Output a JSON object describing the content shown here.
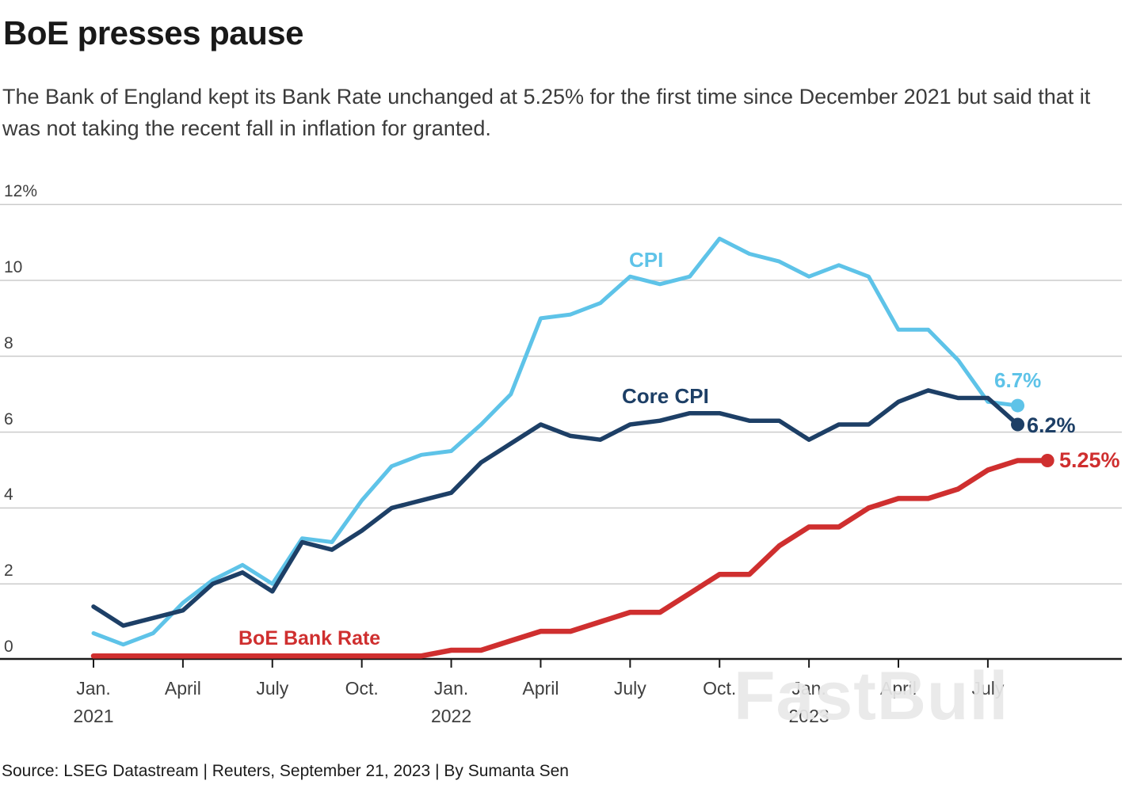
{
  "header": {
    "title": "BoE presses pause",
    "subtitle": "The Bank of England kept its Bank Rate unchanged at 5.25% for the first time since December 2021 but said that it was not taking the recent fall in inflation for granted."
  },
  "palette": {
    "cpi": "#5ec3e8",
    "core_cpi": "#1d3f66",
    "bank_rate": "#cf2f2f",
    "grid": "#cbcbcb",
    "axis": "#1a1a1a",
    "tick_text": "#3f3f3f",
    "watermark_gray": "#e9e9e9"
  },
  "series_labels": {
    "cpi": "CPI",
    "core_cpi": "Core CPI",
    "bank_rate": "BoE Bank Rate"
  },
  "end_labels": {
    "cpi": "6.7%",
    "core_cpi": "6.2%",
    "bank_rate": "5.25%"
  },
  "watermark": {
    "text": "FastBull"
  },
  "footer": {
    "source": "Source: LSEG Datastream | Reuters, September 21, 2023 | By Sumanta Sen"
  },
  "chart_data": {
    "type": "line",
    "title": "BoE presses pause",
    "x_unit": "month",
    "x_start": "2021-01",
    "x_end": "2023-09",
    "ylim": [
      0,
      12
    ],
    "grid": "horizontal",
    "legend_position": "inline-labels",
    "y_ticks": [
      {
        "value": 0,
        "label": "0"
      },
      {
        "value": 2,
        "label": "2"
      },
      {
        "value": 4,
        "label": "4"
      },
      {
        "value": 6,
        "label": "6"
      },
      {
        "value": 8,
        "label": "8"
      },
      {
        "value": 10,
        "label": "10"
      },
      {
        "value": 12,
        "label": "12%"
      }
    ],
    "x_ticks": [
      {
        "month": "Jan.",
        "year": "2021",
        "index": 0
      },
      {
        "month": "April",
        "year": "",
        "index": 3
      },
      {
        "month": "July",
        "year": "",
        "index": 6
      },
      {
        "month": "Oct.",
        "year": "",
        "index": 9
      },
      {
        "month": "Jan.",
        "year": "2022",
        "index": 12
      },
      {
        "month": "April",
        "year": "",
        "index": 15
      },
      {
        "month": "July",
        "year": "",
        "index": 18
      },
      {
        "month": "Oct.",
        "year": "",
        "index": 21
      },
      {
        "month": "Jan.",
        "year": "2023",
        "index": 24
      },
      {
        "month": "April",
        "year": "",
        "index": 27
      },
      {
        "month": "July",
        "year": "",
        "index": 30
      }
    ],
    "series": [
      {
        "name": "CPI",
        "color_key": "cpi",
        "stroke_width": 5,
        "end_label": "6.7%",
        "values": [
          0.7,
          0.4,
          0.7,
          1.5,
          2.1,
          2.5,
          2.0,
          3.2,
          3.1,
          4.2,
          5.1,
          5.4,
          5.5,
          6.2,
          7.0,
          9.0,
          9.1,
          9.4,
          10.1,
          9.9,
          10.1,
          11.1,
          10.7,
          10.5,
          10.1,
          10.4,
          10.1,
          8.7,
          8.7,
          7.9,
          6.8,
          6.7
        ]
      },
      {
        "name": "Core CPI",
        "color_key": "core_cpi",
        "stroke_width": 5.5,
        "end_label": "6.2%",
        "values": [
          1.4,
          0.9,
          1.1,
          1.3,
          2.0,
          2.3,
          1.8,
          3.1,
          2.9,
          3.4,
          4.0,
          4.2,
          4.4,
          5.2,
          5.7,
          6.2,
          5.9,
          5.8,
          6.2,
          6.3,
          6.5,
          6.5,
          6.3,
          6.3,
          5.8,
          6.2,
          6.2,
          6.8,
          7.1,
          6.9,
          6.9,
          6.2
        ]
      },
      {
        "name": "BoE Bank Rate",
        "color_key": "bank_rate",
        "stroke_width": 6.5,
        "end_label": "5.25%",
        "values": [
          0.1,
          0.1,
          0.1,
          0.1,
          0.1,
          0.1,
          0.1,
          0.1,
          0.1,
          0.1,
          0.1,
          0.1,
          0.25,
          0.25,
          0.5,
          0.75,
          0.75,
          1.0,
          1.25,
          1.25,
          1.75,
          2.25,
          2.25,
          3.0,
          3.5,
          3.5,
          4.0,
          4.25,
          4.25,
          4.5,
          5.0,
          5.25,
          5.25
        ]
      }
    ]
  }
}
